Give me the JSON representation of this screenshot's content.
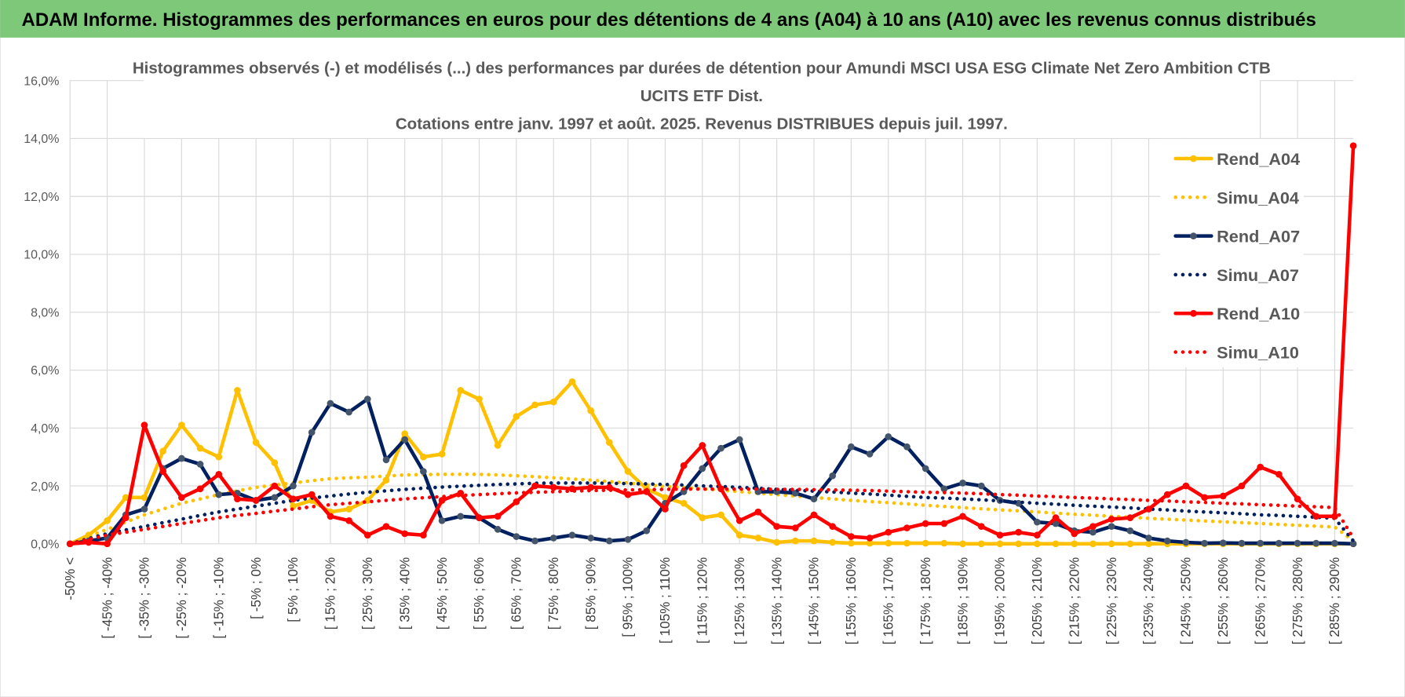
{
  "header": {
    "title": "ADAM Informe. Histogrammes des performances en euros pour des détentions de 4 ans (A04) à 10 ans (A10) avec les revenus connus distribués"
  },
  "chart_data": {
    "type": "line",
    "title_lines": [
      "Histogrammes observés (-) et modélisés (...) des performances par durées de détention pour Amundi MSCI USA ESG Climate Net Zero Ambition CTB",
      "UCITS ETF Dist.",
      "Cotations entre janv. 1997 et août. 2025. Revenus DISTRIBUES depuis juil. 1997."
    ],
    "categories": [
      "-50% <",
      null,
      "[ -45% ; -40%",
      null,
      "[ -35% ; -30%",
      null,
      "[ -25% ; -20%",
      null,
      "[ -15% ; -10%",
      null,
      "[ -5% ; 0%",
      null,
      "[ 5% ; 10%",
      null,
      "[ 15% ; 20%",
      null,
      "[ 25% ; 30%",
      null,
      "[ 35% ; 40%",
      null,
      "[ 45% ; 50%",
      null,
      "[ 55% ; 60%",
      null,
      "[ 65% ; 70%",
      null,
      "[ 75% ; 80%",
      null,
      "[ 85% ; 90%",
      null,
      "[ 95% ; 100%",
      null,
      "[ 105% ; 110%",
      null,
      "[ 115% ; 120%",
      null,
      "[ 125% ; 130%",
      null,
      "[ 135% ; 140%",
      null,
      "[ 145% ; 150%",
      null,
      "[ 155% ; 160%",
      null,
      "[ 165% ; 170%",
      null,
      "[ 175% ; 180%",
      null,
      "[ 185% ; 190%",
      null,
      "[ 195% ; 200%",
      null,
      "[ 205% ; 210%",
      null,
      "[ 215% ; 220%",
      null,
      "[ 225% ; 230%",
      null,
      "[ 235% ; 240%",
      null,
      "[ 245% ; 250%",
      null,
      "[ 255% ; 260%",
      null,
      "[ 265% ; 270%",
      null,
      "[ 275% ; 280%",
      null,
      "[ 285% ; 290%",
      null
    ],
    "ylim": [
      0,
      16
    ],
    "yticks": [
      {
        "value": 0,
        "label": "0,0%"
      },
      {
        "value": 2,
        "label": "2,0%"
      },
      {
        "value": 4,
        "label": "4,0%"
      },
      {
        "value": 6,
        "label": "6,0%"
      },
      {
        "value": 8,
        "label": "8,0%"
      },
      {
        "value": 10,
        "label": "10,0%"
      },
      {
        "value": 12,
        "label": "12,0%"
      },
      {
        "value": 14,
        "label": "14,0%"
      },
      {
        "value": 16,
        "label": "16,0%"
      }
    ],
    "grid": true,
    "legend": "right",
    "series": [
      {
        "name": "Rend_A04",
        "color": "#ffc000",
        "style": "solid",
        "values": [
          0,
          0.3,
          0.8,
          1.6,
          1.6,
          3.2,
          4.1,
          3.3,
          3.0,
          5.3,
          3.5,
          2.8,
          1.3,
          1.5,
          1.1,
          1.2,
          1.5,
          2.2,
          3.8,
          3.0,
          3.1,
          5.3,
          5.0,
          3.4,
          4.4,
          4.8,
          4.9,
          5.6,
          4.6,
          3.5,
          2.5,
          1.9,
          1.6,
          1.4,
          0.9,
          1.0,
          0.3,
          0.2,
          0.05,
          0.1,
          0.1,
          0.05,
          0.02,
          0.02,
          0.02,
          0.02,
          0.02,
          0.02,
          0,
          0,
          0,
          0,
          0,
          0,
          0,
          0,
          0,
          0,
          0,
          0,
          0,
          0,
          0,
          0,
          0,
          0,
          0,
          0,
          0,
          0
        ]
      },
      {
        "name": "Simu_A04",
        "color": "#ffc000",
        "style": "dotted",
        "values": [
          0,
          0.25,
          0.5,
          0.75,
          1.0,
          1.2,
          1.4,
          1.55,
          1.7,
          1.83,
          1.95,
          2.03,
          2.1,
          2.18,
          2.25,
          2.28,
          2.3,
          2.34,
          2.38,
          2.39,
          2.4,
          2.4,
          2.4,
          2.38,
          2.35,
          2.32,
          2.28,
          2.24,
          2.2,
          2.15,
          2.1,
          2.04,
          1.98,
          1.94,
          1.9,
          1.85,
          1.8,
          1.75,
          1.7,
          1.65,
          1.6,
          1.55,
          1.5,
          1.46,
          1.42,
          1.38,
          1.33,
          1.29,
          1.25,
          1.21,
          1.17,
          1.14,
          1.1,
          1.06,
          1.02,
          0.99,
          0.95,
          0.92,
          0.88,
          0.85,
          0.82,
          0.79,
          0.76,
          0.73,
          0.7,
          0.67,
          0.64,
          0.61,
          0.58,
          0.1
        ]
      },
      {
        "name": "Rend_A07",
        "color": "#002060",
        "style": "solid",
        "values": [
          0,
          0.1,
          0.2,
          1.0,
          1.2,
          2.6,
          2.95,
          2.75,
          1.7,
          1.75,
          1.5,
          1.6,
          2.0,
          3.85,
          4.85,
          4.55,
          5.0,
          2.9,
          3.6,
          2.5,
          0.8,
          0.95,
          0.9,
          0.5,
          0.25,
          0.1,
          0.2,
          0.3,
          0.2,
          0.1,
          0.15,
          0.45,
          1.4,
          1.8,
          2.6,
          3.3,
          3.6,
          1.8,
          1.8,
          1.75,
          1.55,
          2.35,
          3.35,
          3.1,
          3.7,
          3.35,
          2.6,
          1.9,
          2.1,
          2.0,
          1.5,
          1.4,
          0.75,
          0.7,
          0.45,
          0.4,
          0.6,
          0.45,
          0.2,
          0.1,
          0.05,
          0.02,
          0.03,
          0.02,
          0.02,
          0.02,
          0.02,
          0.02,
          0.02,
          0
        ]
      },
      {
        "name": "Simu_A07",
        "color": "#002060",
        "style": "dotted",
        "values": [
          0,
          0.18,
          0.35,
          0.48,
          0.6,
          0.73,
          0.85,
          0.98,
          1.1,
          1.2,
          1.3,
          1.4,
          1.5,
          1.58,
          1.65,
          1.72,
          1.78,
          1.83,
          1.88,
          1.92,
          1.96,
          1.99,
          2.02,
          2.05,
          2.07,
          2.09,
          2.1,
          2.1,
          2.1,
          2.09,
          2.08,
          2.07,
          2.05,
          2.03,
          2.0,
          1.98,
          1.95,
          1.92,
          1.88,
          1.85,
          1.82,
          1.79,
          1.75,
          1.72,
          1.68,
          1.64,
          1.6,
          1.58,
          1.55,
          1.52,
          1.48,
          1.44,
          1.4,
          1.37,
          1.33,
          1.3,
          1.27,
          1.24,
          1.2,
          1.17,
          1.13,
          1.1,
          1.07,
          1.04,
          1.0,
          0.98,
          0.95,
          0.92,
          0.88,
          0.1
        ]
      },
      {
        "name": "Rend_A10",
        "color": "#ff0000",
        "style": "solid",
        "values": [
          0,
          0.05,
          0,
          0.9,
          4.1,
          2.5,
          1.6,
          1.9,
          2.4,
          1.55,
          1.5,
          2.0,
          1.55,
          1.7,
          0.95,
          0.8,
          0.3,
          0.6,
          0.35,
          0.3,
          1.5,
          1.75,
          0.9,
          0.95,
          1.45,
          2.0,
          1.95,
          1.9,
          1.95,
          1.95,
          1.7,
          1.8,
          1.2,
          2.7,
          3.4,
          1.9,
          0.8,
          1.1,
          0.6,
          0.55,
          1.0,
          0.6,
          0.25,
          0.2,
          0.4,
          0.55,
          0.7,
          0.7,
          0.95,
          0.6,
          0.3,
          0.4,
          0.3,
          0.9,
          0.35,
          0.6,
          0.85,
          0.9,
          1.2,
          1.7,
          2.0,
          1.6,
          1.65,
          2.0,
          2.65,
          2.4,
          1.55,
          0.95,
          0.95,
          13.75
        ]
      },
      {
        "name": "Simu_A10",
        "color": "#ff0000",
        "style": "dotted",
        "values": [
          0,
          0.15,
          0.3,
          0.4,
          0.5,
          0.6,
          0.7,
          0.8,
          0.9,
          0.98,
          1.05,
          1.13,
          1.2,
          1.28,
          1.35,
          1.4,
          1.45,
          1.5,
          1.55,
          1.59,
          1.63,
          1.67,
          1.7,
          1.73,
          1.76,
          1.78,
          1.8,
          1.82,
          1.84,
          1.85,
          1.86,
          1.87,
          1.88,
          1.89,
          1.89,
          1.89,
          1.89,
          1.89,
          1.88,
          1.88,
          1.87,
          1.86,
          1.85,
          1.84,
          1.82,
          1.8,
          1.78,
          1.77,
          1.75,
          1.73,
          1.7,
          1.68,
          1.65,
          1.63,
          1.6,
          1.58,
          1.55,
          1.53,
          1.5,
          1.48,
          1.45,
          1.43,
          1.4,
          1.38,
          1.35,
          1.33,
          1.3,
          1.28,
          1.25,
          0.2
        ]
      }
    ]
  }
}
